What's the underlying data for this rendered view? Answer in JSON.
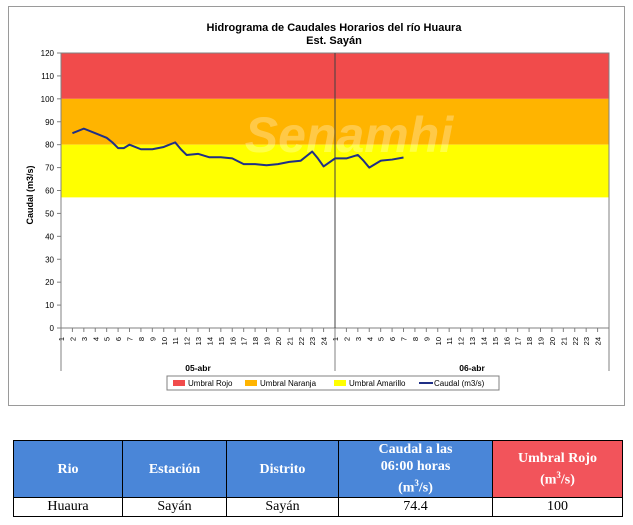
{
  "chart_data": {
    "type": "line",
    "title": "Hidrograma de Caudales Horarios del río Huaura",
    "subtitle": "Est. Sayán",
    "ylabel": "Caudal  (m3/s)",
    "xlabel": "",
    "ylim": [
      0,
      120
    ],
    "yticks": [
      0,
      10,
      20,
      30,
      40,
      50,
      60,
      70,
      80,
      90,
      100,
      110,
      120
    ],
    "x_tick_labels": [
      "1",
      "2",
      "3",
      "4",
      "5",
      "6",
      "7",
      "8",
      "9",
      "10",
      "11",
      "12",
      "13",
      "14",
      "15",
      "16",
      "17",
      "18",
      "19",
      "20",
      "21",
      "22",
      "23",
      "24",
      "1",
      "2",
      "3",
      "4",
      "5",
      "6",
      "7",
      "8",
      "9",
      "10",
      "11",
      "12",
      "13",
      "14",
      "15",
      "16",
      "17",
      "18",
      "19",
      "20",
      "21",
      "22",
      "23",
      "24"
    ],
    "day_labels": [
      "05-abr",
      "06-abr"
    ],
    "bands": [
      {
        "name": "Umbral Rojo",
        "from": 100,
        "to": 120,
        "color": "#f14b4b"
      },
      {
        "name": "Umbral Naranja",
        "from": 80,
        "to": 100,
        "color": "#ffb400"
      },
      {
        "name": "Umbral Amarillo",
        "from": 57,
        "to": 80,
        "color": "#ffff00"
      }
    ],
    "series": [
      {
        "name": "Caudal (m3/s)",
        "color": "#1f2f86",
        "x": [
          1,
          2,
          3,
          4,
          4.5,
          5,
          5.5,
          6,
          7,
          8,
          9,
          10,
          10.5,
          11,
          12,
          13,
          14,
          15,
          16,
          17,
          18,
          19,
          20,
          21,
          21.5,
          22,
          22.5,
          23,
          24,
          25,
          26,
          26.5,
          27,
          28,
          29,
          30
        ],
        "y": [
          85,
          87,
          85,
          83,
          81,
          78.5,
          78.5,
          80,
          78,
          78,
          79,
          81,
          78,
          75.5,
          76,
          74.5,
          74.5,
          74,
          71.5,
          71.5,
          71,
          71.5,
          72.5,
          73,
          75,
          77,
          74,
          70.5,
          74,
          74,
          75.5,
          73,
          70,
          73,
          73.5,
          74.4
        ]
      }
    ],
    "legend": {
      "position": "bottom",
      "items": [
        "Umbral Rojo",
        "Umbral Naranja",
        "Umbral Amarillo",
        "Caudal (m3/s)"
      ]
    },
    "watermark": "Senamhi",
    "grid": false
  },
  "table": {
    "headers": {
      "rio": "Rio",
      "estacion": "Estación",
      "distrito": "Distrito",
      "caudal_line1": "Caudal a las",
      "caudal_line2": "06:00 horas",
      "caudal_unit_pre": "(m",
      "caudal_unit_sup": "3",
      "caudal_unit_post": "/s)",
      "umbral_line1": "Umbral Rojo",
      "umbral_unit_pre": "(m",
      "umbral_unit_sup": "3",
      "umbral_unit_post": "/s)"
    },
    "row": {
      "rio": "Huaura",
      "estacion": "Sayán",
      "distrito": "Sayán",
      "caudal": "74.4",
      "umbral": "100"
    }
  }
}
